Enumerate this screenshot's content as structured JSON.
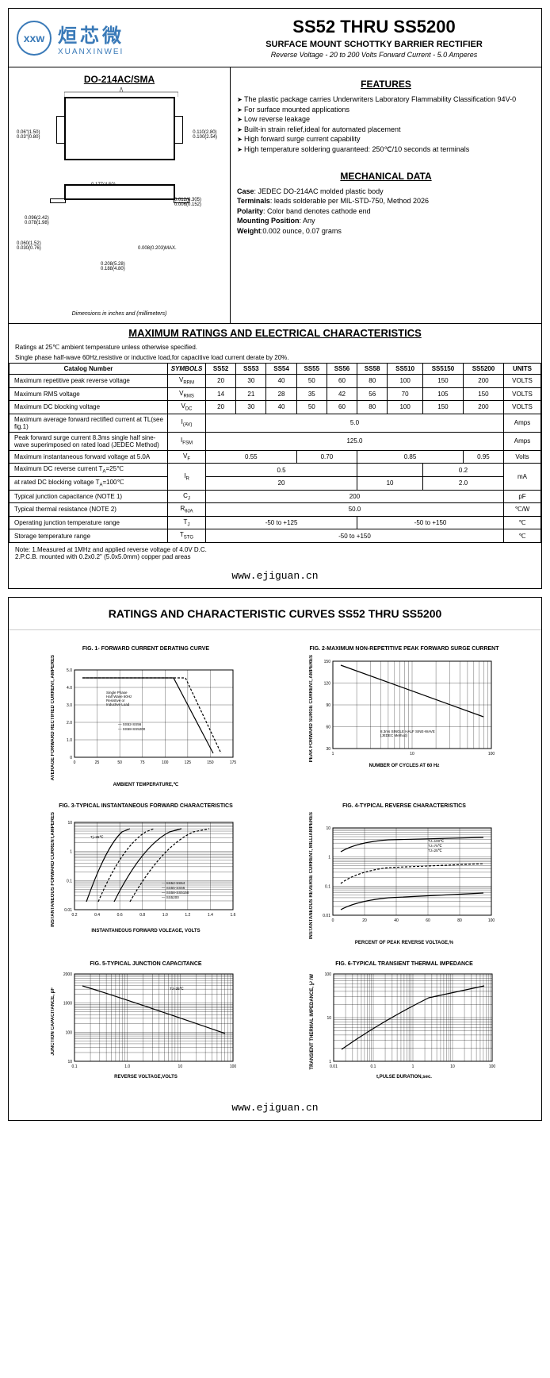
{
  "header": {
    "logo_abbr": "xxw",
    "logo_cn": "烜芯微",
    "logo_en": "XUANXINWEI",
    "title": "SS52 THRU SS5200",
    "subtitle": "SURFACE MOUNT SCHOTTKY BARRIER RECTIFIER",
    "specs": "Reverse Voltage - 20 to 200 Volts    Forward Current -  5.0 Amperes"
  },
  "package": {
    "title": "DO-214AC/SMA",
    "note": "Dimensions in inches and (millimeters)",
    "dims": {
      "d1": "0.06\"(1.50)\n0.03\"(0.80)",
      "d2": "0.110(2.80)\n0.100(2.54)",
      "d3": "0.177(4.50)\n0.157(3.99)",
      "d4": "0.012(0.305)\n0.006(0.152)",
      "d5": "0.096(2.42)\n0.078(1.98)",
      "d6": "0.060(1.52)\n0.030(0.76)",
      "d7": "0.008(0.203)MAX.",
      "d8": "0.208(5.28)\n0.188(4.80)"
    }
  },
  "features": {
    "title": "FEATURES",
    "items": [
      "The plastic package carries Underwriters Laboratory Flammability Classification 94V-0",
      "For surface mounted applications",
      "Low reverse leakage",
      "Built-in strain relief,ideal for automated placement",
      "High forward surge current capability",
      "High temperature soldering guaranteed: 250℃/10 seconds at terminals"
    ]
  },
  "mechanical": {
    "title": "MECHANICAL DATA",
    "case": "JEDEC DO-214AC molded plastic body",
    "terminals": "leads solderable per MIL-STD-750, Method 2026",
    "polarity": "Color band denotes cathode end",
    "mounting": "Any",
    "weight": "0.002 ounce, 0.07 grams"
  },
  "ratings": {
    "title": "MAXIMUM RATINGS AND ELECTRICAL CHARACTERISTICS",
    "note1": "Ratings at 25℃ ambient temperature unless otherwise specified.",
    "note2": "Single phase half-wave 60Hz,resistive or inductive load,for capacitive load current derate by 20%.",
    "columns": [
      "Catalog   Number",
      "SYMBOLS",
      "SS52",
      "SS53",
      "SS54",
      "SS55",
      "SS56",
      "SS58",
      "SS510",
      "SS5150",
      "SS5200",
      "UNITS"
    ],
    "rows": [
      {
        "label": "Maximum repetitive peak reverse voltage",
        "sym": "V<sub>RRM</sub>",
        "vals": [
          "20",
          "30",
          "40",
          "50",
          "60",
          "80",
          "100",
          "150",
          "200"
        ],
        "unit": "VOLTS"
      },
      {
        "label": "Maximum RMS voltage",
        "sym": "V<sub>RMS</sub>",
        "vals": [
          "14",
          "21",
          "28",
          "35",
          "42",
          "56",
          "70",
          "105",
          "150"
        ],
        "unit": "VOLTS"
      },
      {
        "label": "Maximum DC blocking voltage",
        "sym": "V<sub>DC</sub>",
        "vals": [
          "20",
          "30",
          "40",
          "50",
          "60",
          "80",
          "100",
          "150",
          "200"
        ],
        "unit": "VOLTS"
      }
    ],
    "span_rows": [
      {
        "label": "Maximum average forward rectified current at TL(see fig.1)",
        "sym": "I<sub>(AV)</sub>",
        "span": "5.0",
        "unit": "Amps"
      },
      {
        "label": "Peak forward surge current 8.3ms single half sine-wave superimposed on rated load (JEDEC Method)",
        "sym": "I<sub>FSM</sub>",
        "span": "125.0",
        "unit": "Amps"
      }
    ],
    "vf_row": {
      "label": "Maximum instantaneous forward voltage at 5.0A",
      "sym": "V<sub>F</sub>",
      "v1": "0.55",
      "v2": "0.70",
      "v3": "0.85",
      "v4": "0.95",
      "unit": "Volts"
    },
    "ir_row": {
      "label1": "Maximum DC reverse current    T<sub>A</sub>=25℃",
      "label2": "at rated DC blocking voltage    T<sub>A</sub>=100℃",
      "sym": "I<sub>R</sub>",
      "r1a": "0.5",
      "r1b": "",
      "r1c": "0.2",
      "r2a": "20",
      "r2b": "10",
      "r2c": "2.0",
      "unit": "mA"
    },
    "cj_row": {
      "label": "Typical junction capacitance (NOTE 1)",
      "sym": "C<sub>J</sub>",
      "span": "200",
      "unit": "pF"
    },
    "r_row": {
      "label": "Typical thermal resistance (NOTE 2)",
      "sym": "R<sub>θJA</sub>",
      "span": "50.0",
      "unit": "℃/W"
    },
    "tj_row": {
      "label": "Operating junction temperature range",
      "sym": "T<sub>J</sub>",
      "v1": "-50 to +125",
      "v2": "-50 to +150",
      "unit": "℃"
    },
    "tstg_row": {
      "label": "Storage temperature range",
      "sym": "T<sub>STG</sub>",
      "span": "-50 to +150",
      "unit": "℃"
    },
    "footnote": "Note: 1.Measured at 1MHz and applied reverse voltage of 4.0V D.C.\n         2.P.C.B. mounted with 0.2x0.2\" (5.0x5.0mm) copper pad areas"
  },
  "url": "www.ejiguan.cn",
  "page2": {
    "title": "RATINGS AND CHARACTERISTIC CURVES SS52 THRU SS5200",
    "charts": [
      {
        "title": "FIG. 1- FORWARD CURRENT DERATING CURVE",
        "ylabel": "AVERAGE FORWARD RECTIFIED CURRENT, AMPERES",
        "xlabel": "AMBIENT TEMPERATURE,℃",
        "xticks": [
          "0",
          "25",
          "50",
          "75",
          "100",
          "125",
          "150",
          "175"
        ],
        "yticks": [
          "0",
          "1.0",
          "2.0",
          "3.0",
          "4.0",
          "5.0"
        ],
        "type": "linear",
        "legend": [
          "SS52-SS56",
          "SS58-SS5200"
        ],
        "note": "Single Phase\nHalf Wave 60Hz\nResistive or\nInductive Load"
      },
      {
        "title": "FIG. 2-MAXIMUM NON-REPETITIVE PEAK FORWARD SURGE CURRENT",
        "ylabel": "PEAK  FORWARD SURGE CURRENT, AMPERES",
        "xlabel": "NUMBER OF CYCLES AT 60 Hz",
        "xticks": [
          "1",
          "10",
          "100"
        ],
        "yticks": [
          "30",
          "60",
          "90",
          "120",
          "150"
        ],
        "type": "logx",
        "note": "8.3ms SINGLE HALF SINE-WAVE\n(JEDEC Method)"
      },
      {
        "title": "FIG. 3-TYPICAL INSTANTANEOUS FORWARD CHARACTERISTICS",
        "ylabel": "INSTANTANEOUS FORWARD CURRENT,AMPERES",
        "xlabel": "INSTANTANEOUS FORWARD VOLEAGE, VOLTS",
        "xticks": [
          "0.2",
          "0.4",
          "0.6",
          "0.8",
          "1.0",
          "1.2",
          "1.4",
          "1.6"
        ],
        "yticks": [
          "0.01",
          "0.1",
          "1",
          "10"
        ],
        "type": "logy",
        "legend": [
          "SS52-SS54",
          "SS55-SS56",
          "SS58-SS5150",
          "SS5200"
        ],
        "note": "Tj=25℃"
      },
      {
        "title": "FIG. 4-TYPICAL REVERSE CHARACTERISTICS",
        "ylabel": "INSTANTANEOUS REVERSE CURRENT, MILLIAMPERES",
        "xlabel": "PERCENT OF PEAK REVERSE VOLTAGE,%",
        "xticks": [
          "0",
          "20",
          "40",
          "60",
          "80",
          "100"
        ],
        "yticks": [
          "0.01",
          "0.1",
          "1",
          "10"
        ],
        "type": "logy",
        "legend": [
          "TJ=100℃",
          "TJ=75℃",
          "TJ=25℃"
        ]
      },
      {
        "title": "FIG. 5-TYPICAL JUNCTION CAPACITANCE",
        "ylabel": "JUNCTION CAPACITANCE, pF",
        "xlabel": "REVERSE VOLTAGE,VOLTS",
        "xticks": [
          "0.1",
          "1.0",
          "10",
          "100"
        ],
        "yticks": [
          "10",
          "100",
          "1000",
          "2000"
        ],
        "type": "loglog",
        "note": "TJ=25℃"
      },
      {
        "title": "FIG. 6-TYPICAL TRANSIENT THERMAL IMPEDANCE",
        "ylabel": "TRANSIENT THERMAL IMPEDANCE, ℃/W",
        "xlabel": "t,PULSE DURATION,sec.",
        "xticks": [
          "0.01",
          "0.1",
          "1",
          "10",
          "100"
        ],
        "yticks": [
          "1",
          "10",
          "100"
        ],
        "type": "loglog"
      }
    ]
  }
}
